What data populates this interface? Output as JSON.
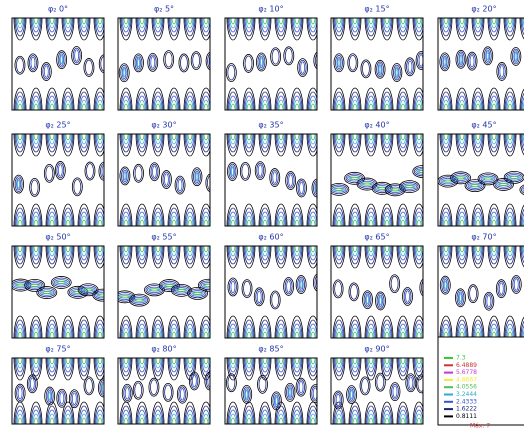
{
  "panels": [
    {
      "title": "φ₂ 0°"
    },
    {
      "title": "φ₂ 5°"
    },
    {
      "title": "φ₂ 10°"
    },
    {
      "title": "φ₂ 15°"
    },
    {
      "title": "φ₂ 20°"
    },
    {
      "title": "φ₂ 25°"
    },
    {
      "title": "φ₂ 30°"
    },
    {
      "title": "φ₂ 35°"
    },
    {
      "title": "φ₂ 40°"
    },
    {
      "title": "φ₂ 45°"
    },
    {
      "title": "φ₂ 50°"
    },
    {
      "title": "φ₂ 55°"
    },
    {
      "title": "φ₂ 60°"
    },
    {
      "title": "φ₂ 65°"
    },
    {
      "title": "φ₂ 70°"
    },
    {
      "title": "φ₂ 75°"
    },
    {
      "title": "φ₂ 80°"
    },
    {
      "title": "φ₂ 85°"
    },
    {
      "title": "φ₂ 90°"
    }
  ],
  "legend": {
    "levels": [
      {
        "value": 7.3,
        "color": "#33cc33"
      },
      {
        "value": 6.4889,
        "color": "#cc3333"
      },
      {
        "value": 5.6778,
        "color": "#cc33cc"
      },
      {
        "value": 4.8667,
        "color": "#eeee33"
      },
      {
        "value": 4.0556,
        "color": "#55bb55"
      },
      {
        "value": 3.2444,
        "color": "#33aacc"
      },
      {
        "value": 2.4333,
        "color": "#3355cc"
      },
      {
        "value": 1.6222,
        "color": "#1a237e"
      },
      {
        "value": 0.8111,
        "color": "#000000"
      }
    ],
    "max_label": "Máx. 7"
  }
}
